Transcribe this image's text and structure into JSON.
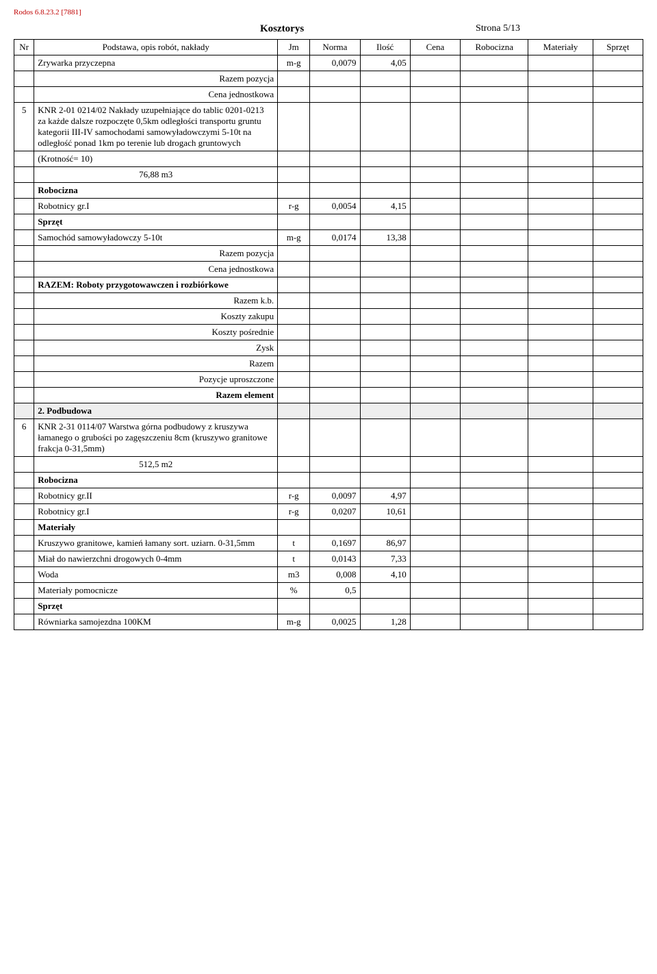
{
  "doc_id": "Rodos 6.8.23.2 [7881]",
  "title": "Kosztorys",
  "page_label": "Strona 5/13",
  "headers": {
    "nr": "Nr",
    "desc": "Podstawa, opis robót, nakłady",
    "jm": "Jm",
    "norma": "Norma",
    "ilosc": "Ilość",
    "cena": "Cena",
    "robocizna": "Robocizna",
    "materialy": "Materiały",
    "sprzet": "Sprzęt"
  },
  "rows": [
    {
      "nr": "",
      "desc": "Zrywarka przyczepna",
      "jm": "m-g",
      "norma": "0,0079",
      "ilosc": "4,05"
    },
    {
      "nr": "",
      "desc_right": "Razem pozycja"
    },
    {
      "nr": "",
      "desc_right": "Cena jednostkowa"
    },
    {
      "nr": "5",
      "desc": "KNR 2-01 0214/02  Nakłady uzupełniające do tablic 0201-0213 za każde dalsze rozpoczęte 0,5km odległości transportu gruntu kategorii III-IV samochodami samowyładowczymi 5-10t na odległość ponad 1km po terenie lub drogach gruntowych"
    },
    {
      "nr": "",
      "desc_indent": " (Krotność= 10)"
    },
    {
      "nr": "",
      "desc_center": "76,88  m3"
    },
    {
      "nr": "",
      "desc_bold": "Robocizna"
    },
    {
      "nr": "",
      "desc": "Robotnicy gr.I",
      "jm": "r-g",
      "norma": "0,0054",
      "ilosc": "4,15"
    },
    {
      "nr": "",
      "desc_bold": "Sprzęt"
    },
    {
      "nr": "",
      "desc": "Samochód samowyładowczy  5-10t",
      "jm": "m-g",
      "norma": "0,0174",
      "ilosc": "13,38"
    },
    {
      "nr": "",
      "desc_right": "Razem pozycja"
    },
    {
      "nr": "",
      "desc_right": "Cena jednostkowa"
    },
    {
      "nr": "",
      "desc_bold": "RAZEM: Roboty przygotowawczen i rozbiórkowe"
    },
    {
      "nr": "",
      "desc_right": "Razem k.b."
    },
    {
      "nr": "",
      "desc_right": "Koszty zakupu"
    },
    {
      "nr": "",
      "desc_right": "Koszty pośrednie"
    },
    {
      "nr": "",
      "desc_right": "Zysk"
    },
    {
      "nr": "",
      "desc_right": "Razem"
    },
    {
      "nr": "",
      "desc_right": "Pozycje uproszczone"
    },
    {
      "nr": "",
      "desc_right_bold": "Razem element"
    },
    {
      "section": true,
      "desc_bold": "2. Podbudowa"
    },
    {
      "nr": "6",
      "desc": "KNR 2-31 0114/07  Warstwa górna podbudowy z kruszywa łamanego o grubości po zagęszczeniu 8cm (kruszywo granitowe frakcja 0-31,5mm)"
    },
    {
      "nr": "",
      "desc_center": "512,5  m2"
    },
    {
      "nr": "",
      "desc_bold": "Robocizna"
    },
    {
      "nr": "",
      "desc": "Robotnicy gr.II",
      "jm": "r-g",
      "norma": "0,0097",
      "ilosc": "4,97"
    },
    {
      "nr": "",
      "desc": "Robotnicy gr.I",
      "jm": "r-g",
      "norma": "0,0207",
      "ilosc": "10,61"
    },
    {
      "nr": "",
      "desc_bold": "Materiały"
    },
    {
      "nr": "",
      "desc": "Kruszywo granitowe, kamień łamany sort. uziarn. 0-31,5mm",
      "jm": "t",
      "norma": "0,1697",
      "ilosc": "86,97"
    },
    {
      "nr": "",
      "desc": "Miał do nawierzchni drogowych  0-4mm",
      "jm": "t",
      "norma": "0,0143",
      "ilosc": "7,33"
    },
    {
      "nr": "",
      "desc": "Woda",
      "jm": "m3",
      "norma": "0,008",
      "ilosc": "4,10"
    },
    {
      "nr": "",
      "desc": "Materiały pomocnicze",
      "jm": "%",
      "norma": "0,5",
      "ilosc": ""
    },
    {
      "nr": "",
      "desc_bold": "Sprzęt"
    },
    {
      "nr": "",
      "desc": "Równiarka samojezdna 100KM",
      "jm": "m-g",
      "norma": "0,0025",
      "ilosc": "1,28"
    }
  ]
}
